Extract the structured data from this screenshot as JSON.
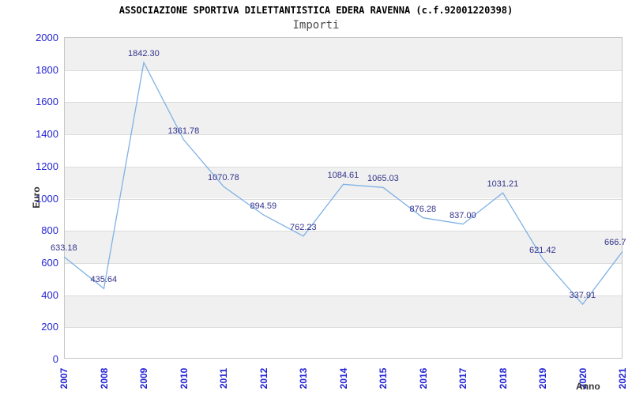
{
  "header": {
    "title": "ASSOCIAZIONE SPORTIVA DILETTANTISTICA EDERA RAVENNA (c.f.92001220398)",
    "subtitle": "Importi"
  },
  "chart_data": {
    "type": "line",
    "title": "ASSOCIAZIONE SPORTIVA DILETTANTISTICA EDERA RAVENNA (c.f.92001220398)",
    "subtitle": "Importi",
    "xlabel": "Anno",
    "ylabel": "Euro",
    "categories": [
      "2007",
      "2008",
      "2009",
      "2010",
      "2011",
      "2012",
      "2013",
      "2014",
      "2015",
      "2016",
      "2017",
      "2018",
      "2019",
      "2020",
      "2021"
    ],
    "values": [
      633.18,
      435.64,
      1842.3,
      1361.78,
      1070.78,
      894.59,
      762.23,
      1084.61,
      1065.03,
      876.28,
      837.0,
      1031.21,
      621.42,
      337.91,
      666.7
    ],
    "point_labels": [
      "633.18",
      "435.64",
      "1842.30",
      "1361.78",
      "1070.78",
      "894.59",
      "762.23",
      "1084.61",
      "1065.03",
      "876.28",
      "837.00",
      "1031.21",
      "621.42",
      "337.91",
      "666.7"
    ],
    "ylim": [
      0,
      2000
    ],
    "yticks": [
      0,
      200,
      400,
      600,
      800,
      1000,
      1200,
      1400,
      1600,
      1800,
      2000
    ],
    "grid": true,
    "legend": "none",
    "colors": {
      "line": "#7fb2e5",
      "axis_tick_text": "#2424d6",
      "point_label_text": "#32328c",
      "band_alt": "#f0f0f0",
      "band_main": "#ffffff",
      "gridline": "#dcdcdc",
      "plot_border": "#c6c6c6"
    }
  }
}
